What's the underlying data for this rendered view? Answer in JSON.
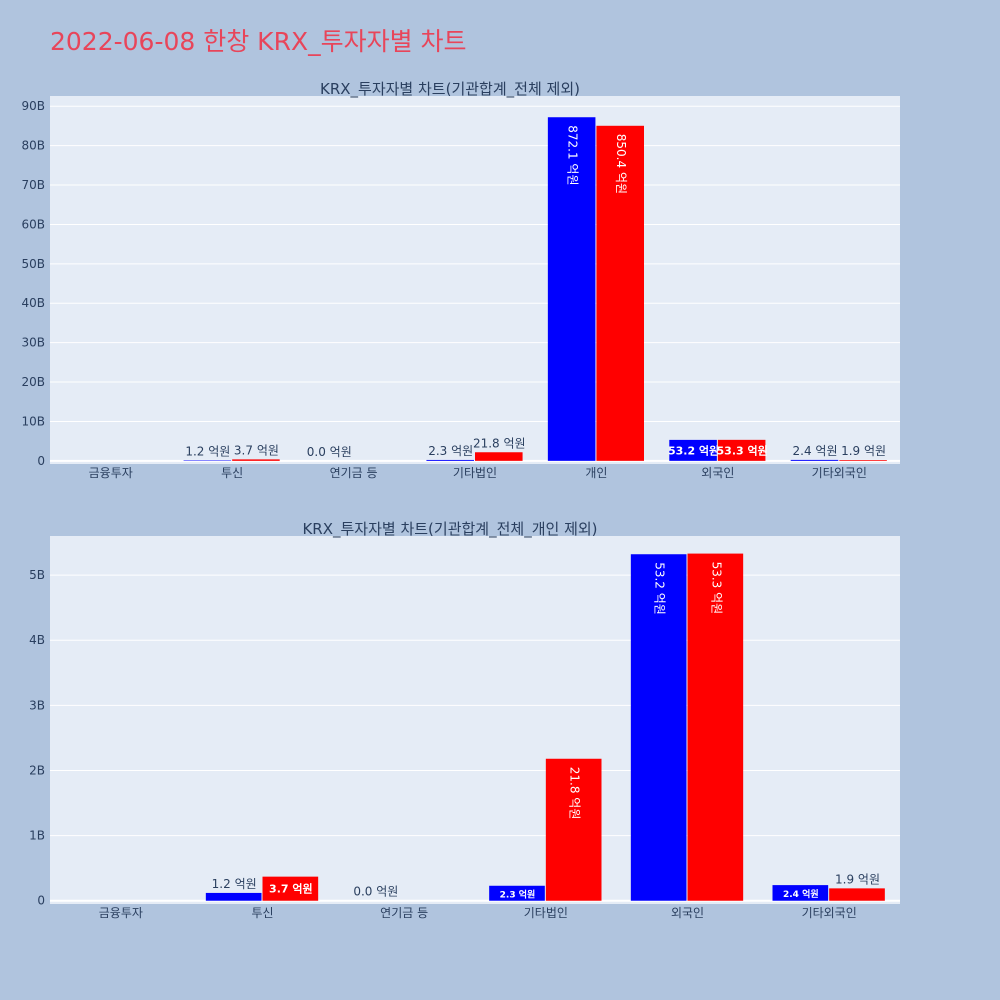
{
  "title": "2022-06-08 한창 KRX_투자자별 차트",
  "chart_data": [
    {
      "type": "bar",
      "title": "KRX_투자자별 차트(기관합계_전체 제외)",
      "categories": [
        "금융투자",
        "투신",
        "연기금 등",
        "기타법인",
        "개인",
        "외국인",
        "기타외국인"
      ],
      "series": [
        {
          "color": "#0000ff",
          "values": [
            0,
            120000000,
            0,
            230000000,
            87210000000,
            5320000000,
            240000000
          ],
          "labels": [
            "",
            "1.2 억원",
            "0.0 억원",
            "2.3 억원",
            "872.1 억원",
            "53.2 억원",
            "2.4 억원"
          ]
        },
        {
          "color": "#ff0000",
          "values": [
            0,
            370000000,
            0,
            2180000000,
            85040000000,
            5330000000,
            190000000
          ],
          "labels": [
            "",
            "3.7 억원",
            "",
            "21.8 억원",
            "850.4 억원",
            "53.3 억원",
            "1.9 억원"
          ]
        }
      ],
      "ylim": [
        -800000000,
        92600000000
      ],
      "yticks": [
        0,
        10000000000,
        20000000000,
        30000000000,
        40000000000,
        50000000000,
        60000000000,
        70000000000,
        80000000000,
        90000000000
      ],
      "ytick_labels": [
        "0",
        "10B",
        "20B",
        "30B",
        "40B",
        "50B",
        "60B",
        "70B",
        "80B",
        "90B"
      ],
      "grid": true
    },
    {
      "type": "bar",
      "title": "KRX_투자자별 차트(기관합계_전체_개인 제외)",
      "categories": [
        "금융투자",
        "투신",
        "연기금 등",
        "기타법인",
        "외국인",
        "기타외국인"
      ],
      "series": [
        {
          "color": "#0000ff",
          "values": [
            0,
            120000000,
            0,
            230000000,
            5320000000,
            240000000
          ],
          "labels": [
            "",
            "1.2 억원",
            "0.0 억원",
            "2.3 억원",
            "53.2 억원",
            "2.4 억원"
          ]
        },
        {
          "color": "#ff0000",
          "values": [
            0,
            370000000,
            0,
            2180000000,
            5330000000,
            190000000
          ],
          "labels": [
            "",
            "3.7 억원",
            "",
            "21.8 억원",
            "53.3 억원",
            "1.9 억원"
          ]
        }
      ],
      "ylim": [
        -50000000,
        5600000000
      ],
      "yticks": [
        0,
        1000000000,
        2000000000,
        3000000000,
        4000000000,
        5000000000
      ],
      "ytick_labels": [
        "0",
        "1B",
        "2B",
        "3B",
        "4B",
        "5B"
      ],
      "grid": true
    }
  ]
}
